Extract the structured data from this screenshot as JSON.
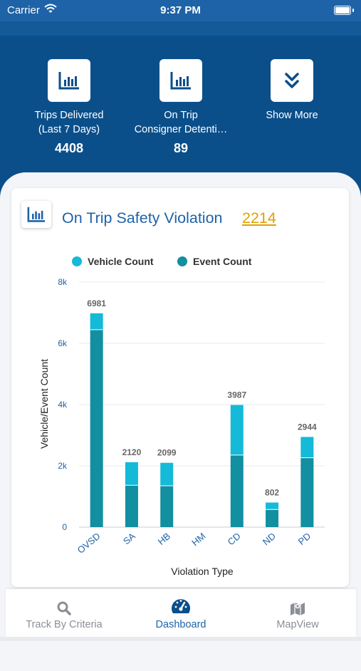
{
  "status_bar": {
    "carrier": "Carrier",
    "time": "9:37 PM"
  },
  "summary_tiles": [
    {
      "label_line1": "Trips  Delivered",
      "label_line2": "(Last 7 Days)",
      "value": "4408",
      "icon": "bar-chart-icon"
    },
    {
      "label_line1": "On  Trip",
      "label_line2": "Consigner Detenti…",
      "value": "89",
      "icon": "bar-chart-icon"
    },
    {
      "label_line1": "Show  More",
      "label_line2": "",
      "value": "",
      "icon": "double-chevron-down-icon"
    }
  ],
  "card": {
    "title": "On Trip Safety Violation",
    "count": "2214",
    "icon": "bar-chart-icon"
  },
  "chart_data": {
    "type": "bar",
    "stacked": true,
    "categories": [
      "OVSD",
      "SA",
      "HB",
      "HM",
      "CD",
      "ND",
      "PD"
    ],
    "series": [
      {
        "name": "Vehicle Count",
        "color": "#14bad8",
        "values": [
          535,
          755,
          750,
          0,
          1635,
          225,
          680
        ]
      },
      {
        "name": "Event Count",
        "color": "#128fa0",
        "values": [
          6446,
          1365,
          1349,
          0,
          2352,
          577,
          2264
        ]
      }
    ],
    "totals": [
      "6981",
      "2120",
      "2099",
      "",
      "3987",
      "802",
      "2944"
    ],
    "ylim": [
      0,
      8000
    ],
    "yticks": [
      "0",
      "2k",
      "4k",
      "6k",
      "8k"
    ],
    "ylabel": "Vehicle/Event Count",
    "xlabel": "Violation Type",
    "legend_position": "top",
    "grid": true
  },
  "tabbar": {
    "tabs": [
      {
        "label": "Track By Criteria",
        "icon": "search-icon",
        "active": false
      },
      {
        "label": "Dashboard",
        "icon": "speedometer-icon",
        "active": true
      },
      {
        "label": "MapView",
        "icon": "map-icon",
        "active": false
      }
    ]
  },
  "colors": {
    "brand": "#0b4f8a",
    "accent": "#1e63a8",
    "count": "#e0a200",
    "inactive_tab": "#8a8f96"
  }
}
